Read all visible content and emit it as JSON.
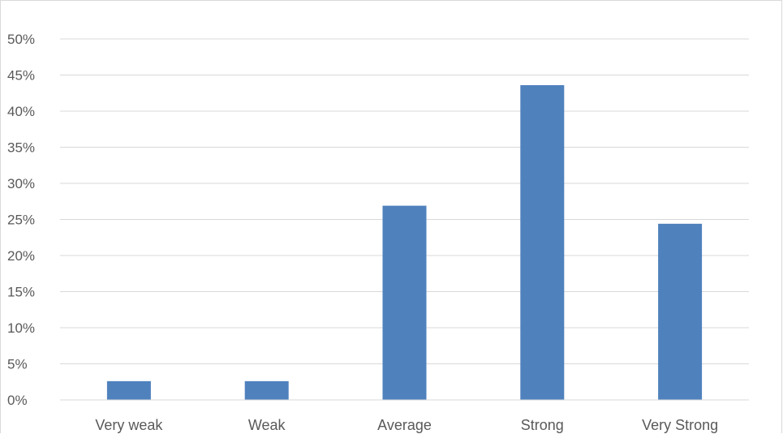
{
  "chart_data": {
    "type": "bar",
    "title": "",
    "xlabel": "",
    "ylabel": "",
    "categories": [
      "Very weak",
      "Weak",
      "Average",
      "Strong",
      "Very Strong"
    ],
    "values": [
      2.6,
      2.6,
      26.9,
      43.6,
      24.4
    ],
    "ylim": [
      0,
      50
    ],
    "y_tick_step": 5,
    "y_tick_labels": [
      "0%",
      "5%",
      "10%",
      "15%",
      "20%",
      "25%",
      "30%",
      "35%",
      "40%",
      "45%",
      "50%"
    ],
    "value_format": "percent",
    "grid": true,
    "legend": "none",
    "colors": {
      "bar": "#4f81bd",
      "grid": "#d9d9d9",
      "text": "#595959"
    }
  }
}
